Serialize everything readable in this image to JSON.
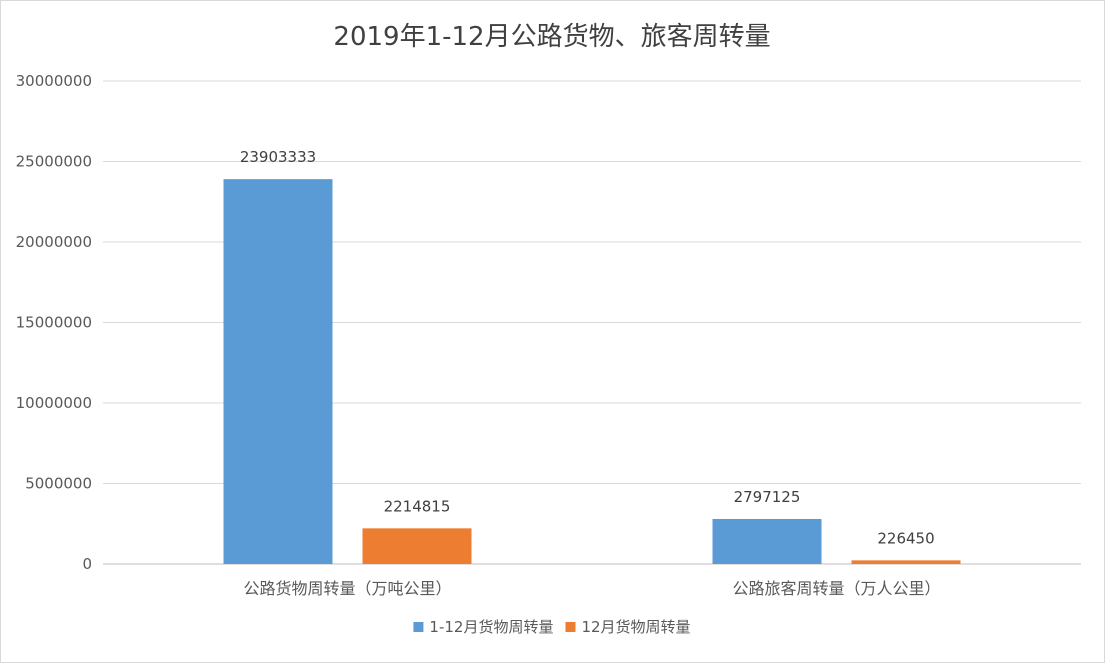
{
  "chart_data": {
    "type": "bar",
    "title": "2019年1-12月公路货物、旅客周转量",
    "categories": [
      "公路货物周转量（万吨公里）",
      "公路旅客周转量（万人公里）"
    ],
    "series": [
      {
        "name": "1-12月货物周转量",
        "color": "#5b9bd5",
        "values": [
          23903333,
          2797125
        ]
      },
      {
        "name": "12月货物周转量",
        "color": "#ed7d31",
        "values": [
          2214815,
          226450
        ]
      }
    ],
    "y_ticks": [
      "0",
      "5000000",
      "10000000",
      "15000000",
      "20000000",
      "25000000",
      "30000000"
    ],
    "ylim": [
      0,
      30000000
    ],
    "grid": true,
    "legend_position": "bottom"
  }
}
